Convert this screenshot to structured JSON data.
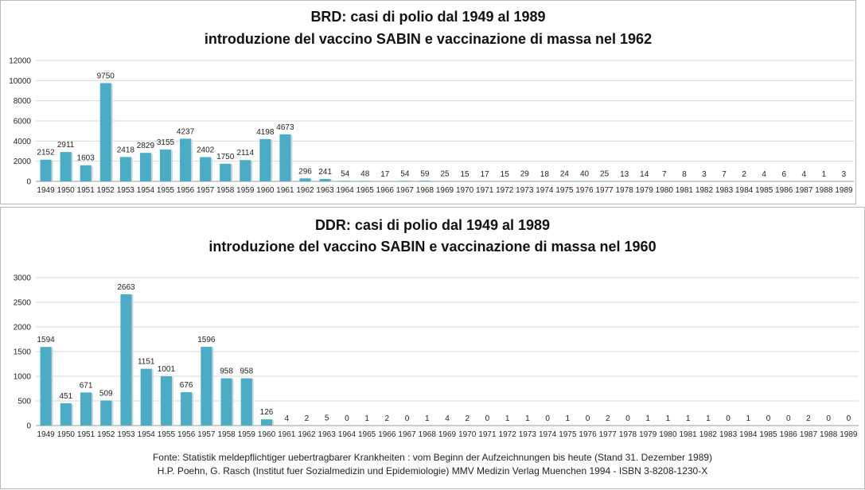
{
  "chart_data": [
    {
      "type": "bar",
      "title": "BRD: casi di polio dal 1949 al 1989",
      "subtitle": "introduzione del vaccino SABIN e vaccinazione di massa nel 1962",
      "xlabel": "",
      "ylabel": "",
      "ylim": [
        0,
        12000
      ],
      "yticks": [
        0,
        2000,
        4000,
        6000,
        8000,
        10000,
        12000
      ],
      "grid": true,
      "color": "#4bacc6",
      "categories": [
        "1949",
        "1950",
        "1951",
        "1952",
        "1953",
        "1954",
        "1955",
        "1956",
        "1957",
        "1958",
        "1959",
        "1960",
        "1961",
        "1962",
        "1963",
        "1964",
        "1965",
        "1966",
        "1967",
        "1968",
        "1969",
        "1970",
        "1971",
        "1972",
        "1973",
        "1974",
        "1975",
        "1976",
        "1977",
        "1978",
        "1979",
        "1980",
        "1981",
        "1982",
        "1983",
        "1984",
        "1985",
        "1986",
        "1987",
        "1988",
        "1989"
      ],
      "values": [
        2152,
        2911,
        1603,
        9750,
        2418,
        2829,
        3155,
        4237,
        2402,
        1750,
        2114,
        4198,
        4673,
        296,
        241,
        54,
        48,
        17,
        54,
        59,
        25,
        15,
        17,
        15,
        29,
        18,
        24,
        40,
        25,
        13,
        14,
        7,
        8,
        3,
        7,
        2,
        4,
        6,
        4,
        1,
        3
      ]
    },
    {
      "type": "bar",
      "title": "DDR: casi di polio dal 1949 al 1989",
      "subtitle": "introduzione del vaccino SABIN e vaccinazione di massa nel 1960",
      "xlabel": "",
      "ylabel": "",
      "ylim": [
        0,
        3000
      ],
      "yticks": [
        0,
        500,
        1000,
        1500,
        2000,
        2500,
        3000
      ],
      "grid": true,
      "color": "#4bacc6",
      "categories": [
        "1949",
        "1950",
        "1951",
        "1952",
        "1953",
        "1954",
        "1955",
        "1956",
        "1957",
        "1958",
        "1959",
        "1960",
        "1961",
        "1962",
        "1963",
        "1964",
        "1965",
        "1966",
        "1967",
        "1968",
        "1969",
        "1970",
        "1971",
        "1972",
        "1973",
        "1974",
        "1975",
        "1976",
        "1977",
        "1978",
        "1979",
        "1980",
        "1981",
        "1982",
        "1983",
        "1984",
        "1985",
        "1986",
        "1987",
        "1988",
        "1989"
      ],
      "values": [
        1594,
        451,
        671,
        509,
        2663,
        1151,
        1001,
        676,
        1596,
        958,
        958,
        126,
        4,
        2,
        5,
        0,
        1,
        2,
        0,
        1,
        4,
        2,
        0,
        1,
        1,
        0,
        1,
        0,
        2,
        0,
        1,
        1,
        1,
        1,
        0,
        1,
        0,
        0,
        2,
        0,
        0
      ]
    }
  ],
  "source": {
    "line1": "Fonte: Statistik meldepflichtiger  uebertragbarer Krankheiten : vom Beginn der Aufzeichnungen  bis heute (Stand 31. Dezember 1989)",
    "line2": "H.P. Poehn,  G. Rasch (Institut fuer Sozialmedizin und Epidemiologie)   MMV Medizin Verlag Muenchen  1994 - ISBN 3-8208-1230-X"
  }
}
